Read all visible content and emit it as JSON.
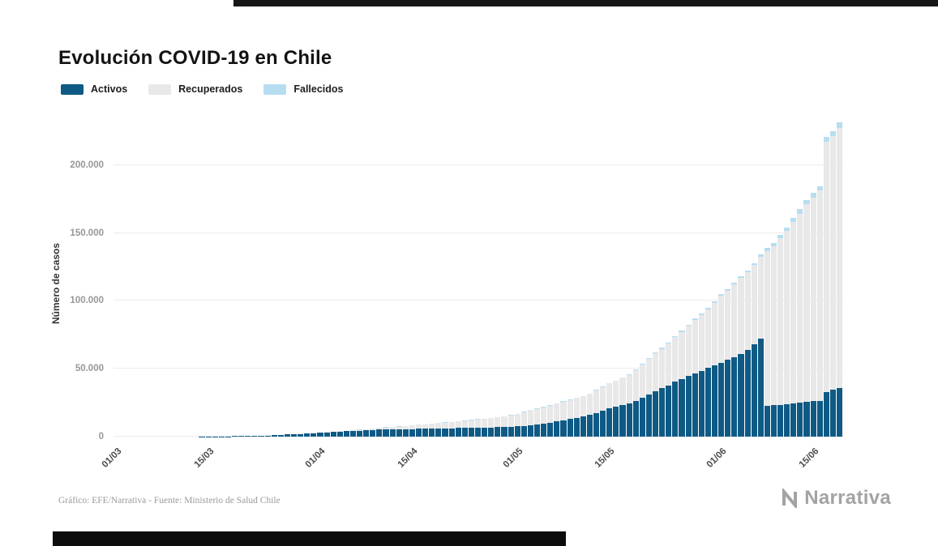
{
  "header": {
    "title": "Evolución COVID-19 en Chile"
  },
  "footer": {
    "source": "Gráfico: EFE/Narrativa - Fuente: Ministerio de Salud Chile",
    "brand": "Narrativa"
  },
  "colors": {
    "activos": "#0e5a85",
    "recuperados": "#e8e8e8",
    "fallecidos": "#b7ddf1",
    "gridline": "#ececec"
  },
  "chart_data": {
    "type": "bar",
    "stacked": true,
    "title": "Evolución COVID-19 en Chile",
    "xlabel": "",
    "ylabel": "Número de casos",
    "ylim": [
      0,
      235000
    ],
    "grid": "horizontal",
    "legend_position": "top-left",
    "y_ticks": [
      {
        "value": 0,
        "label": "0"
      },
      {
        "value": 50000,
        "label": "50.000"
      },
      {
        "value": 100000,
        "label": "100.000"
      },
      {
        "value": 150000,
        "label": "150.000"
      },
      {
        "value": 200000,
        "label": "200.000"
      }
    ],
    "x_tick_labels": [
      "01/03",
      "15/03",
      "01/04",
      "15/04",
      "01/05",
      "15/05",
      "01/06",
      "15/06"
    ],
    "x": [
      "01/03",
      "02/03",
      "03/03",
      "04/03",
      "05/03",
      "06/03",
      "07/03",
      "08/03",
      "09/03",
      "10/03",
      "11/03",
      "12/03",
      "13/03",
      "14/03",
      "15/03",
      "16/03",
      "17/03",
      "18/03",
      "19/03",
      "20/03",
      "21/03",
      "22/03",
      "23/03",
      "24/03",
      "25/03",
      "26/03",
      "27/03",
      "28/03",
      "29/03",
      "30/03",
      "31/03",
      "01/04",
      "02/04",
      "03/04",
      "04/04",
      "05/04",
      "06/04",
      "07/04",
      "08/04",
      "09/04",
      "10/04",
      "11/04",
      "12/04",
      "13/04",
      "14/04",
      "15/04",
      "16/04",
      "17/04",
      "18/04",
      "19/04",
      "20/04",
      "21/04",
      "22/04",
      "23/04",
      "24/04",
      "25/04",
      "26/04",
      "27/04",
      "28/04",
      "29/04",
      "30/04",
      "01/05",
      "02/05",
      "03/05",
      "04/05",
      "05/05",
      "06/05",
      "07/05",
      "08/05",
      "09/05",
      "10/05",
      "11/05",
      "12/05",
      "13/05",
      "14/05",
      "15/05",
      "16/05",
      "17/05",
      "18/05",
      "19/05",
      "20/05",
      "21/05",
      "22/05",
      "23/05",
      "24/05",
      "25/05",
      "26/05",
      "27/05",
      "28/05",
      "29/05",
      "30/05",
      "31/05",
      "01/06",
      "02/06",
      "03/06",
      "04/06",
      "05/06",
      "06/06",
      "07/06",
      "08/06",
      "09/06",
      "10/06",
      "11/06",
      "12/06",
      "13/06",
      "14/06",
      "15/06",
      "16/06",
      "17/06",
      "18/06",
      "19/06"
    ],
    "series": [
      {
        "name": "Activos",
        "color": "#0e5a85",
        "values": [
          0,
          0,
          1,
          3,
          4,
          5,
          7,
          10,
          13,
          17,
          23,
          33,
          43,
          61,
          75,
          155,
          200,
          236,
          339,
          428,
          529,
          621,
          731,
          902,
          1113,
          1266,
          1557,
          1843,
          2056,
          2337,
          2570,
          2800,
          3100,
          3350,
          3700,
          3900,
          4150,
          4350,
          4650,
          4900,
          5250,
          5450,
          5550,
          5600,
          5650,
          5550,
          5750,
          5850,
          6000,
          6050,
          6150,
          6200,
          6300,
          6400,
          6500,
          6600,
          6700,
          6800,
          6900,
          7000,
          7200,
          7500,
          8000,
          8600,
          9100,
          9800,
          10400,
          11200,
          12000,
          12900,
          13900,
          14800,
          15900,
          17500,
          19200,
          21000,
          22000,
          23300,
          24500,
          26500,
          28800,
          31000,
          33500,
          35500,
          37500,
          40500,
          42500,
          44500,
          46800,
          48500,
          50500,
          52600,
          54500,
          56500,
          58500,
          61000,
          64000,
          68000,
          72000,
          22500,
          23000,
          23500,
          24000,
          24500,
          25000,
          25500,
          26000,
          26500,
          33000,
          34500,
          35500
        ]
      },
      {
        "name": "Recuperados",
        "color": "#e8e8e8",
        "values": [
          0,
          0,
          0,
          0,
          0,
          0,
          0,
          0,
          0,
          0,
          0,
          0,
          0,
          0,
          0,
          1,
          1,
          2,
          3,
          6,
          7,
          10,
          13,
          18,
          25,
          35,
          48,
          60,
          76,
          104,
          156,
          215,
          286,
          365,
          434,
          537,
          628,
          723,
          848,
          1015,
          1186,
          1404,
          1583,
          1843,
          2175,
          2629,
          2952,
          3286,
          3604,
          3905,
          4218,
          4485,
          4836,
          5244,
          5632,
          6077,
          6442,
          6815,
          7258,
          7669,
          8596,
          9274,
          10188,
          10803,
          11273,
          11941,
          12367,
          13096,
          13678,
          14015,
          14654,
          14940,
          15486,
          16534,
          17472,
          18148,
          19007,
          20031,
          21081,
          22570,
          24273,
          25992,
          27727,
          29220,
          30884,
          32736,
          34655,
          36948,
          39253,
          41194,
          43361,
          46034,
          49546,
          50998,
          53853,
          55936,
          57051,
          58204,
          60513,
          114082,
          117476,
          122521,
          127444,
          133476,
          139254,
          145470,
          150074,
          154566,
          184013,
          186762,
          191800
        ]
      },
      {
        "name": "Fallecidos",
        "color": "#b7ddf1",
        "values": [
          0,
          0,
          0,
          0,
          0,
          0,
          0,
          0,
          0,
          0,
          0,
          0,
          0,
          0,
          0,
          0,
          0,
          0,
          0,
          0,
          1,
          1,
          2,
          2,
          4,
          5,
          5,
          6,
          7,
          8,
          12,
          16,
          18,
          22,
          27,
          34,
          37,
          43,
          48,
          57,
          65,
          73,
          80,
          82,
          92,
          94,
          105,
          116,
          126,
          133,
          139,
          147,
          160,
          168,
          174,
          181,
          189,
          198,
          207,
          216,
          227,
          234,
          247,
          260,
          270,
          275,
          281,
          285,
          294,
          304,
          312,
          323,
          335,
          347,
          368,
          394,
          421,
          450,
          478,
          509,
          544,
          589,
          630,
          673,
          718,
          761,
          806,
          841,
          890,
          944,
          997,
          1054,
          1113,
          1188,
          1275,
          1356,
          1448,
          1541,
          1637,
          2264,
          2283,
          2475,
          2648,
          2870,
          3101,
          3323,
          3362,
          3383,
          3615,
          3841,
          4093
        ]
      }
    ]
  }
}
